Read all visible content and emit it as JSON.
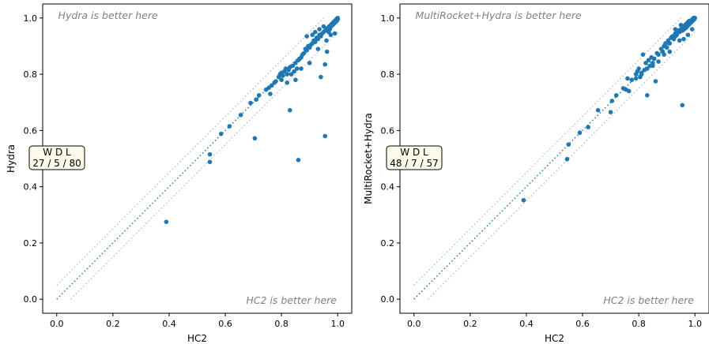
{
  "chart_data": [
    {
      "type": "scatter",
      "xlabel": "HC2",
      "ylabel": "Hydra",
      "xlim": [
        -0.05,
        1.05
      ],
      "ylim": [
        -0.05,
        1.05
      ],
      "xticks": [
        "0.0",
        "0.2",
        "0.4",
        "0.6",
        "0.8",
        "1.0"
      ],
      "yticks": [
        "0.0",
        "0.2",
        "0.4",
        "0.6",
        "0.8",
        "1.0"
      ],
      "upper_note": "Hydra is better here",
      "lower_note": "HC2 is better here",
      "wdl_header": "W D L",
      "wdl_values": "27 / 5 / 80",
      "point_color": "#1f77b4",
      "diagonal_color": "#1f77b4",
      "band_color": "#c0c0c0",
      "band_offset": 0.05,
      "points": [
        [
          0.39,
          0.275
        ],
        [
          0.545,
          0.488
        ],
        [
          0.545,
          0.515
        ],
        [
          0.585,
          0.588
        ],
        [
          0.615,
          0.615
        ],
        [
          0.655,
          0.655
        ],
        [
          0.69,
          0.698
        ],
        [
          0.705,
          0.572
        ],
        [
          0.71,
          0.71
        ],
        [
          0.72,
          0.725
        ],
        [
          0.745,
          0.745
        ],
        [
          0.755,
          0.752
        ],
        [
          0.76,
          0.73
        ],
        [
          0.765,
          0.76
        ],
        [
          0.775,
          0.77
        ],
        [
          0.78,
          0.775
        ],
        [
          0.79,
          0.79
        ],
        [
          0.795,
          0.8
        ],
        [
          0.8,
          0.805
        ],
        [
          0.805,
          0.795
        ],
        [
          0.81,
          0.81
        ],
        [
          0.815,
          0.82
        ],
        [
          0.82,
          0.8
        ],
        [
          0.825,
          0.815
        ],
        [
          0.83,
          0.825
        ],
        [
          0.83,
          0.672
        ],
        [
          0.835,
          0.8
        ],
        [
          0.84,
          0.83
        ],
        [
          0.845,
          0.81
        ],
        [
          0.85,
          0.84
        ],
        [
          0.855,
          0.82
        ],
        [
          0.86,
          0.85
        ],
        [
          0.86,
          0.495
        ],
        [
          0.865,
          0.855
        ],
        [
          0.87,
          0.86
        ],
        [
          0.875,
          0.87
        ],
        [
          0.88,
          0.875
        ],
        [
          0.885,
          0.89
        ],
        [
          0.89,
          0.885
        ],
        [
          0.895,
          0.9
        ],
        [
          0.9,
          0.895
        ],
        [
          0.905,
          0.905
        ],
        [
          0.91,
          0.91
        ],
        [
          0.915,
          0.92
        ],
        [
          0.92,
          0.915
        ],
        [
          0.925,
          0.93
        ],
        [
          0.93,
          0.925
        ],
        [
          0.935,
          0.94
        ],
        [
          0.94,
          0.79
        ],
        [
          0.94,
          0.935
        ],
        [
          0.945,
          0.945
        ],
        [
          0.95,
          0.95
        ],
        [
          0.955,
          0.58
        ],
        [
          0.955,
          0.835
        ],
        [
          0.955,
          0.955
        ],
        [
          0.96,
          0.96
        ],
        [
          0.962,
          0.88
        ],
        [
          0.965,
          0.965
        ],
        [
          0.968,
          0.95
        ],
        [
          0.97,
          0.97
        ],
        [
          0.972,
          0.96
        ],
        [
          0.975,
          0.975
        ],
        [
          0.977,
          0.97
        ],
        [
          0.98,
          0.98
        ],
        [
          0.982,
          0.975
        ],
        [
          0.985,
          0.985
        ],
        [
          0.987,
          0.98
        ],
        [
          0.99,
          0.99
        ],
        [
          0.992,
          0.985
        ],
        [
          0.995,
          0.995
        ],
        [
          0.997,
          0.99
        ],
        [
          1.0,
          1.0
        ],
        [
          1.0,
          0.995
        ],
        [
          0.998,
          0.998
        ],
        [
          0.99,
          0.945
        ],
        [
          0.975,
          0.94
        ],
        [
          0.96,
          0.92
        ],
        [
          0.93,
          0.89
        ],
        [
          0.9,
          0.84
        ],
        [
          0.87,
          0.82
        ],
        [
          0.85,
          0.78
        ],
        [
          0.82,
          0.77
        ],
        [
          0.8,
          0.78
        ],
        [
          0.89,
          0.935
        ],
        [
          0.92,
          0.95
        ],
        [
          0.95,
          0.97
        ],
        [
          0.935,
          0.96
        ],
        [
          0.91,
          0.94
        ]
      ]
    },
    {
      "type": "scatter",
      "xlabel": "HC2",
      "ylabel": "MultiRocket+Hydra",
      "xlim": [
        -0.05,
        1.05
      ],
      "ylim": [
        -0.05,
        1.05
      ],
      "xticks": [
        "0.0",
        "0.2",
        "0.4",
        "0.6",
        "0.8",
        "1.0"
      ],
      "yticks": [
        "0.0",
        "0.2",
        "0.4",
        "0.6",
        "0.8",
        "1.0"
      ],
      "upper_note": "MultiRocket+Hydra is better here",
      "lower_note": "HC2 is better here",
      "wdl_header": "W D L",
      "wdl_values": "48 / 7 / 57",
      "point_color": "#1f77b4",
      "diagonal_color": "#1f77b4",
      "band_color": "#c0c0c0",
      "band_offset": 0.05,
      "points": [
        [
          0.39,
          0.352
        ],
        [
          0.545,
          0.498
        ],
        [
          0.55,
          0.55
        ],
        [
          0.59,
          0.592
        ],
        [
          0.62,
          0.612
        ],
        [
          0.655,
          0.672
        ],
        [
          0.7,
          0.665
        ],
        [
          0.705,
          0.705
        ],
        [
          0.72,
          0.725
        ],
        [
          0.745,
          0.75
        ],
        [
          0.755,
          0.745
        ],
        [
          0.76,
          0.785
        ],
        [
          0.765,
          0.74
        ],
        [
          0.775,
          0.78
        ],
        [
          0.79,
          0.8
        ],
        [
          0.795,
          0.81
        ],
        [
          0.8,
          0.82
        ],
        [
          0.805,
          0.79
        ],
        [
          0.81,
          0.8
        ],
        [
          0.815,
          0.87
        ],
        [
          0.82,
          0.815
        ],
        [
          0.825,
          0.84
        ],
        [
          0.83,
          0.725
        ],
        [
          0.835,
          0.85
        ],
        [
          0.84,
          0.83
        ],
        [
          0.845,
          0.86
        ],
        [
          0.85,
          0.84
        ],
        [
          0.855,
          0.855
        ],
        [
          0.86,
          0.775
        ],
        [
          0.865,
          0.875
        ],
        [
          0.87,
          0.87
        ],
        [
          0.88,
          0.89
        ],
        [
          0.885,
          0.88
        ],
        [
          0.89,
          0.9
        ],
        [
          0.895,
          0.91
        ],
        [
          0.9,
          0.895
        ],
        [
          0.905,
          0.92
        ],
        [
          0.91,
          0.91
        ],
        [
          0.915,
          0.93
        ],
        [
          0.92,
          0.935
        ],
        [
          0.925,
          0.925
        ],
        [
          0.93,
          0.945
        ],
        [
          0.935,
          0.94
        ],
        [
          0.94,
          0.955
        ],
        [
          0.945,
          0.95
        ],
        [
          0.95,
          0.96
        ],
        [
          0.955,
          0.69
        ],
        [
          0.955,
          0.955
        ],
        [
          0.96,
          0.97
        ],
        [
          0.962,
          0.96
        ],
        [
          0.965,
          0.975
        ],
        [
          0.968,
          0.965
        ],
        [
          0.97,
          0.98
        ],
        [
          0.972,
          0.97
        ],
        [
          0.975,
          0.985
        ],
        [
          0.977,
          0.975
        ],
        [
          0.98,
          0.99
        ],
        [
          0.982,
          0.98
        ],
        [
          0.985,
          0.99
        ],
        [
          0.987,
          0.985
        ],
        [
          0.99,
          0.995
        ],
        [
          0.992,
          0.99
        ],
        [
          0.995,
          1.0
        ],
        [
          0.997,
          0.995
        ],
        [
          1.0,
          1.0
        ],
        [
          0.998,
          0.997
        ],
        [
          0.99,
          0.96
        ],
        [
          0.975,
          0.94
        ],
        [
          0.96,
          0.925
        ],
        [
          0.945,
          0.92
        ],
        [
          0.93,
          0.935
        ],
        [
          0.91,
          0.88
        ],
        [
          0.89,
          0.87
        ],
        [
          0.87,
          0.845
        ],
        [
          0.85,
          0.83
        ],
        [
          0.83,
          0.82
        ],
        [
          0.81,
          0.805
        ],
        [
          0.79,
          0.785
        ],
        [
          0.93,
          0.96
        ],
        [
          0.95,
          0.975
        ]
      ]
    }
  ]
}
